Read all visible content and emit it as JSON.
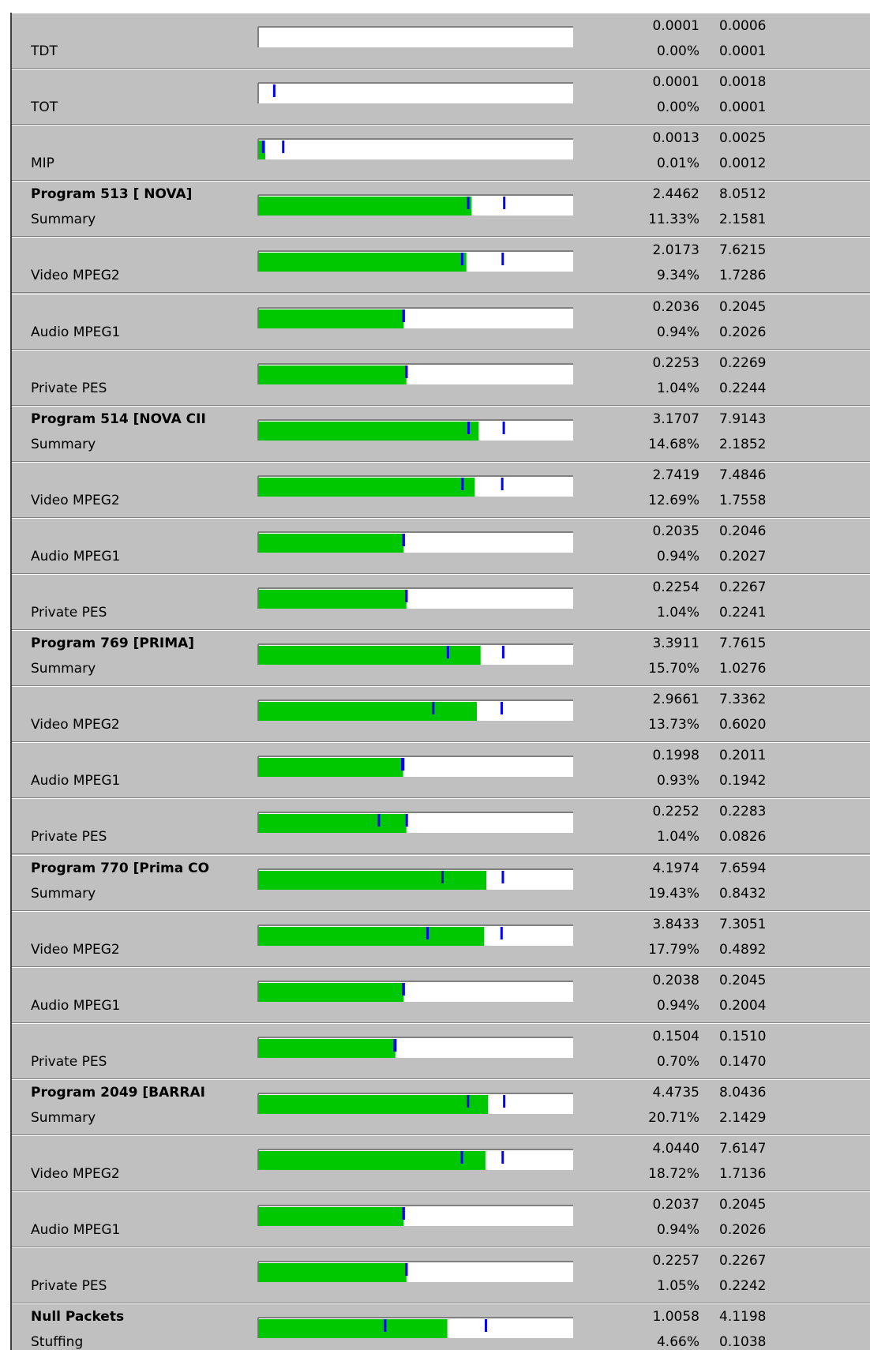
{
  "bar_scale": {
    "xlim": [
      0.001,
      100
    ],
    "log": true,
    "fill_color": "#00c800",
    "marker_color": "#0000ff"
  },
  "rows": [
    {
      "label": "TDT",
      "current": "0.0001",
      "max": "0.0006",
      "percent": "0.00%",
      "min": "0.0001"
    },
    {
      "label": "TOT",
      "current": "0.0001",
      "max": "0.0018",
      "percent": "0.00%",
      "min": "0.0001"
    },
    {
      "label": "MIP",
      "current": "0.0013",
      "max": "0.0025",
      "percent": "0.01%",
      "min": "0.0012"
    },
    {
      "title": "Program 513 [ NOVA]",
      "label": "Summary",
      "current": "2.4462",
      "max": "8.0512",
      "percent": "11.33%",
      "min": "2.1581"
    },
    {
      "label": "Video MPEG2",
      "current": "2.0173",
      "max": "7.6215",
      "percent": "9.34%",
      "min": "1.7286"
    },
    {
      "label": "Audio MPEG1",
      "current": "0.2036",
      "max": "0.2045",
      "percent": "0.94%",
      "min": "0.2026"
    },
    {
      "label": "Private PES",
      "current": "0.2253",
      "max": "0.2269",
      "percent": "1.04%",
      "min": "0.2244"
    },
    {
      "title": "Program 514 [NOVA CII",
      "label": "Summary",
      "current": "3.1707",
      "max": "7.9143",
      "percent": "14.68%",
      "min": "2.1852"
    },
    {
      "label": "Video MPEG2",
      "current": "2.7419",
      "max": "7.4846",
      "percent": "12.69%",
      "min": "1.7558"
    },
    {
      "label": "Audio MPEG1",
      "current": "0.2035",
      "max": "0.2046",
      "percent": "0.94%",
      "min": "0.2027"
    },
    {
      "label": "Private PES",
      "current": "0.2254",
      "max": "0.2267",
      "percent": "1.04%",
      "min": "0.2241"
    },
    {
      "title": "Program 769 [PRIMA]",
      "label": "Summary",
      "current": "3.3911",
      "max": "7.7615",
      "percent": "15.70%",
      "min": "1.0276"
    },
    {
      "label": "Video MPEG2",
      "current": "2.9661",
      "max": "7.3362",
      "percent": "13.73%",
      "min": "0.6020"
    },
    {
      "label": "Audio MPEG1",
      "current": "0.1998",
      "max": "0.2011",
      "percent": "0.93%",
      "min": "0.1942"
    },
    {
      "label": "Private PES",
      "current": "0.2252",
      "max": "0.2283",
      "percent": "1.04%",
      "min": "0.0826"
    },
    {
      "title": "Program 770 [Prima CO",
      "label": "Summary",
      "current": "4.1974",
      "max": "7.6594",
      "percent": "19.43%",
      "min": "0.8432"
    },
    {
      "label": "Video MPEG2",
      "current": "3.8433",
      "max": "7.3051",
      "percent": "17.79%",
      "min": "0.4892"
    },
    {
      "label": "Audio MPEG1",
      "current": "0.2038",
      "max": "0.2045",
      "percent": "0.94%",
      "min": "0.2004"
    },
    {
      "label": "Private PES",
      "current": "0.1504",
      "max": "0.1510",
      "percent": "0.70%",
      "min": "0.1470"
    },
    {
      "title": "Program 2049 [BARRAI",
      "label": "Summary",
      "current": "4.4735",
      "max": "8.0436",
      "percent": "20.71%",
      "min": "2.1429"
    },
    {
      "label": "Video MPEG2",
      "current": "4.0440",
      "max": "7.6147",
      "percent": "18.72%",
      "min": "1.7136"
    },
    {
      "label": "Audio MPEG1",
      "current": "0.2037",
      "max": "0.2045",
      "percent": "0.94%",
      "min": "0.2026"
    },
    {
      "label": "Private PES",
      "current": "0.2257",
      "max": "0.2267",
      "percent": "1.05%",
      "min": "0.2242"
    },
    {
      "title": "Null Packets",
      "label": "Stuffing",
      "current": "1.0058",
      "max": "4.1198",
      "percent": "4.66%",
      "min": "0.1038"
    }
  ]
}
